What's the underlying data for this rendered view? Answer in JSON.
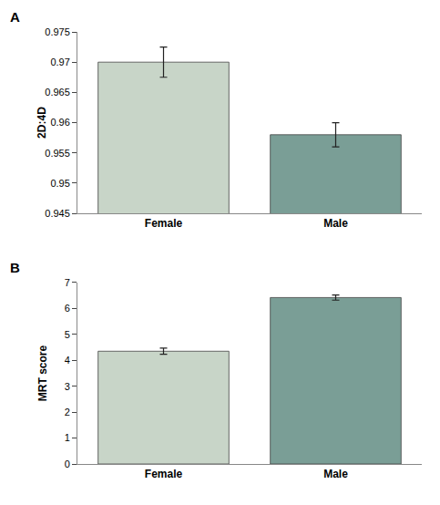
{
  "chart_data": [
    {
      "type": "bar",
      "categories": [
        "Female",
        "Male"
      ],
      "values": [
        0.97,
        0.958
      ],
      "errors": [
        0.0025,
        0.002
      ],
      "colors": [
        "#c8d5c8",
        "#7a9e96"
      ],
      "ylabel": "2D:4D",
      "ylim": [
        0.945,
        0.975
      ],
      "yticks": [
        0.945,
        0.95,
        0.955,
        0.96,
        0.965,
        0.97,
        0.975
      ],
      "annotations": [
        "A"
      ],
      "grid": false
    },
    {
      "type": "bar",
      "categories": [
        "Female",
        "Male"
      ],
      "values": [
        4.35,
        6.42
      ],
      "errors": [
        0.12,
        0.1
      ],
      "colors": [
        "#c8d5c8",
        "#7a9e96"
      ],
      "ylabel": "MRT score",
      "ylim": [
        0,
        7
      ],
      "yticks": [
        0,
        1,
        2,
        3,
        4,
        5,
        6,
        7
      ],
      "annotations": [
        "B"
      ],
      "grid": false
    }
  ]
}
